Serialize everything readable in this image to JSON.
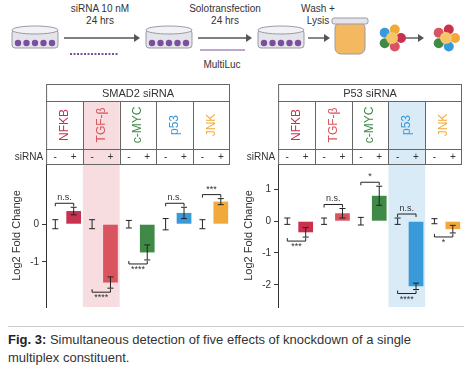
{
  "schematic": {
    "steps": [
      [
        "siRNA 10 nM",
        "24 hrs"
      ],
      [
        "Solotransfection",
        "24 hrs"
      ],
      [
        "Wash +",
        "Lysis"
      ]
    ],
    "reagent": "MultiLuc"
  },
  "chart_data": [
    {
      "type": "bar",
      "title": "SMAD2 siRNA",
      "y_label": "Log2 Fold Change",
      "group_label": "siRNA",
      "categories": [
        "NFKB",
        "TGF-β",
        "c-MYC",
        "p53",
        "JNK"
      ],
      "colors": [
        "#c8324f",
        "#d9545f",
        "#3f8a47",
        "#3a9ad9",
        "#f2a93b"
      ],
      "series": [
        {
          "name": "-",
          "values": [
            0,
            0,
            0,
            0,
            0
          ],
          "errors": [
            0.12,
            0.12,
            0.1,
            0.15,
            0.12
          ]
        },
        {
          "name": "+",
          "values": [
            0.35,
            -1.55,
            -0.75,
            0.3,
            0.6
          ],
          "errors": [
            0.1,
            0.15,
            0.2,
            0.15,
            0.08
          ]
        }
      ],
      "ylim": [
        -2.2,
        1.6
      ],
      "yticks": [
        -1,
        0
      ],
      "annotations": [
        {
          "category": "NFKB",
          "text": "n.s.",
          "side": "above"
        },
        {
          "category": "TGF-β",
          "text": "****",
          "side": "below"
        },
        {
          "category": "c-MYC",
          "text": "****",
          "side": "below"
        },
        {
          "category": "p53",
          "text": "n.s.",
          "side": "above"
        },
        {
          "category": "JNK",
          "text": "***",
          "side": "above"
        }
      ]
    },
    {
      "type": "bar",
      "title": "P53 siRNA",
      "y_label": "Log2 Fold Change",
      "group_label": "siRNA",
      "categories": [
        "NFKB",
        "TGF-β",
        "c-MYC",
        "p53",
        "JNK"
      ],
      "colors": [
        "#c8324f",
        "#d9545f",
        "#3f8a47",
        "#3a9ad9",
        "#f2a93b"
      ],
      "series": [
        {
          "name": "-",
          "values": [
            0,
            0,
            0,
            0,
            0
          ],
          "errors": [
            0.1,
            0.1,
            0.12,
            0.1,
            0.08
          ]
        },
        {
          "name": "+",
          "values": [
            -0.35,
            0.25,
            0.8,
            -2.05,
            -0.25
          ],
          "errors": [
            0.15,
            0.15,
            0.3,
            0.1,
            0.12
          ]
        }
      ],
      "ylim": [
        -2.7,
        1.8
      ],
      "yticks": [
        -2,
        -1,
        0,
        1
      ],
      "annotations": [
        {
          "category": "NFKB",
          "text": "***",
          "side": "below"
        },
        {
          "category": "TGF-β",
          "text": "n.s.",
          "side": "above"
        },
        {
          "category": "c-MYC",
          "text": "*",
          "side": "above"
        },
        {
          "category": "p53",
          "text": "n.s.",
          "side": "above"
        },
        {
          "category": "p53",
          "text": "****",
          "side": "below"
        },
        {
          "category": "JNK",
          "text": "*",
          "side": "below"
        }
      ]
    }
  ],
  "caption": {
    "prefix": "Fig. 3:",
    "text": "Simultaneous detection of five effects of knockdown of a single multiplex constituent."
  }
}
